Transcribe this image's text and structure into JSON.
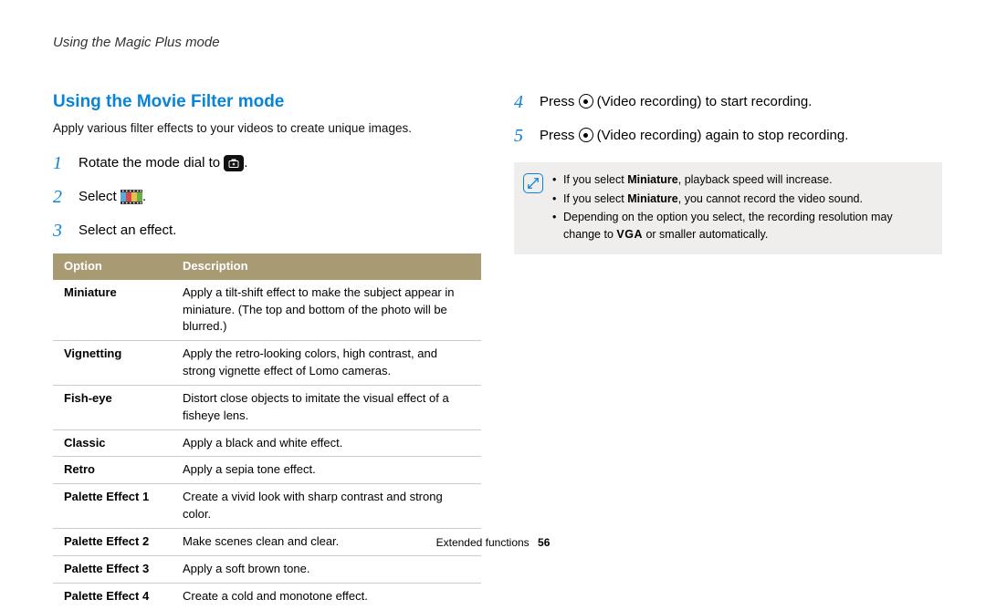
{
  "header": {
    "breadcrumb": "Using the Magic Plus mode"
  },
  "left": {
    "title": "Using the Movie Filter mode",
    "intro": "Apply various filter effects to your videos to create unique images.",
    "steps": [
      {
        "num": "1",
        "pre": "Rotate the mode dial to ",
        "icon": "mode-plus",
        "post": "."
      },
      {
        "num": "2",
        "pre": "Select ",
        "icon": "film-strip",
        "post": "."
      },
      {
        "num": "3",
        "pre": "Select an effect.",
        "icon": "",
        "post": ""
      }
    ],
    "table": {
      "headers": [
        "Option",
        "Description"
      ],
      "rows": [
        {
          "opt": "Miniature",
          "desc": "Apply a tilt-shift effect to make the subject appear in miniature. (The top and bottom of the photo will be blurred.)"
        },
        {
          "opt": "Vignetting",
          "desc": "Apply the retro-looking colors, high contrast, and strong vignette effect of Lomo cameras."
        },
        {
          "opt": "Fish-eye",
          "desc": "Distort close objects to imitate the visual effect of a fisheye lens."
        },
        {
          "opt": "Classic",
          "desc": "Apply a black and white effect."
        },
        {
          "opt": "Retro",
          "desc": "Apply a sepia tone effect."
        },
        {
          "opt": "Palette Effect 1",
          "desc": "Create a vivid look with sharp contrast and strong color."
        },
        {
          "opt": "Palette Effect 2",
          "desc": "Make scenes clean and clear."
        },
        {
          "opt": "Palette Effect 3",
          "desc": "Apply a soft brown tone."
        },
        {
          "opt": "Palette Effect 4",
          "desc": "Create a cold and monotone effect."
        }
      ]
    }
  },
  "right": {
    "steps": [
      {
        "num": "4",
        "pre": "Press ",
        "icon": "record",
        "post": " (Video recording) to start recording."
      },
      {
        "num": "5",
        "pre": "Press ",
        "icon": "record",
        "post": " (Video recording) again to stop recording."
      }
    ],
    "notes": {
      "bold_word": "Miniature",
      "items": [
        {
          "pre": "If you select ",
          "bold": "Miniature",
          "post": ", playback speed will increase."
        },
        {
          "pre": "If you select ",
          "bold": "Miniature",
          "post": ", you cannot record the video sound."
        },
        {
          "pre": "Depending on the option you select, the recording resolution may change to ",
          "vga": true,
          "post": " or smaller automatically."
        }
      ]
    }
  },
  "footer": {
    "section": "Extended functions",
    "page": "56"
  },
  "styling": {
    "accent_color": "#0a84d6",
    "table_header_bg": "#a89a73",
    "note_bg": "#efeeed",
    "body_font_size": 14,
    "title_font_size": 19
  }
}
